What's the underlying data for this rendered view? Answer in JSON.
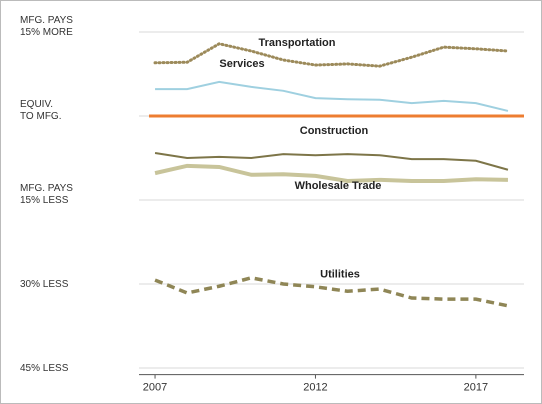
{
  "chart_data": {
    "type": "line",
    "x": [
      2007,
      2008,
      2009,
      2010,
      2011,
      2012,
      2013,
      2014,
      2015,
      2016,
      2017,
      2018
    ],
    "xlim": [
      2006.5,
      2018.5
    ],
    "xticks": [
      2007,
      2012,
      2017
    ],
    "ylim": [
      -46,
      19
    ],
    "yticks": [
      {
        "value": 15,
        "label": "MFG. PAYS\n15% MORE"
      },
      {
        "value": 0,
        "label": "EQUIV.\nTO MFG."
      },
      {
        "value": -15,
        "label": "MFG. PAYS\n15% LESS"
      },
      {
        "value": -30,
        "label": "30% LESS"
      },
      {
        "value": -45,
        "label": "45% LESS"
      }
    ],
    "grid": true,
    "baseline": {
      "value": 0,
      "color": "#ed7d31"
    },
    "series": [
      {
        "name": "Transportation",
        "color": "#9c8a5a",
        "style": "dotted",
        "values": [
          9.5,
          9.6,
          12.9,
          11.6,
          10.0,
          9.1,
          9.3,
          8.9,
          10.5,
          12.3,
          12.0,
          11.6
        ]
      },
      {
        "name": "Services",
        "color": "#9fd0e0",
        "style": "solid",
        "values": [
          4.8,
          4.8,
          6.1,
          5.2,
          4.5,
          3.2,
          3.0,
          2.9,
          2.3,
          2.7,
          2.3,
          0.9
        ]
      },
      {
        "name": "Construction",
        "color": "#7d7548",
        "style": "solid",
        "values": [
          -6.6,
          -7.5,
          -7.3,
          -7.5,
          -6.8,
          -7.0,
          -6.8,
          -7.0,
          -7.7,
          -7.7,
          -8.0,
          -9.6
        ]
      },
      {
        "name": "Wholesale Trade",
        "color": "#c8c49a",
        "style": "thick",
        "values": [
          -10.2,
          -8.9,
          -9.1,
          -10.5,
          -10.4,
          -10.7,
          -11.6,
          -11.4,
          -11.6,
          -11.6,
          -11.3,
          -11.4
        ]
      },
      {
        "name": "Utilities",
        "color": "#8f8656",
        "style": "dashed",
        "values": [
          -29.3,
          -31.6,
          -30.4,
          -28.9,
          -30.0,
          -30.5,
          -31.3,
          -30.9,
          -32.5,
          -32.7,
          -32.7,
          -33.9
        ]
      }
    ]
  }
}
